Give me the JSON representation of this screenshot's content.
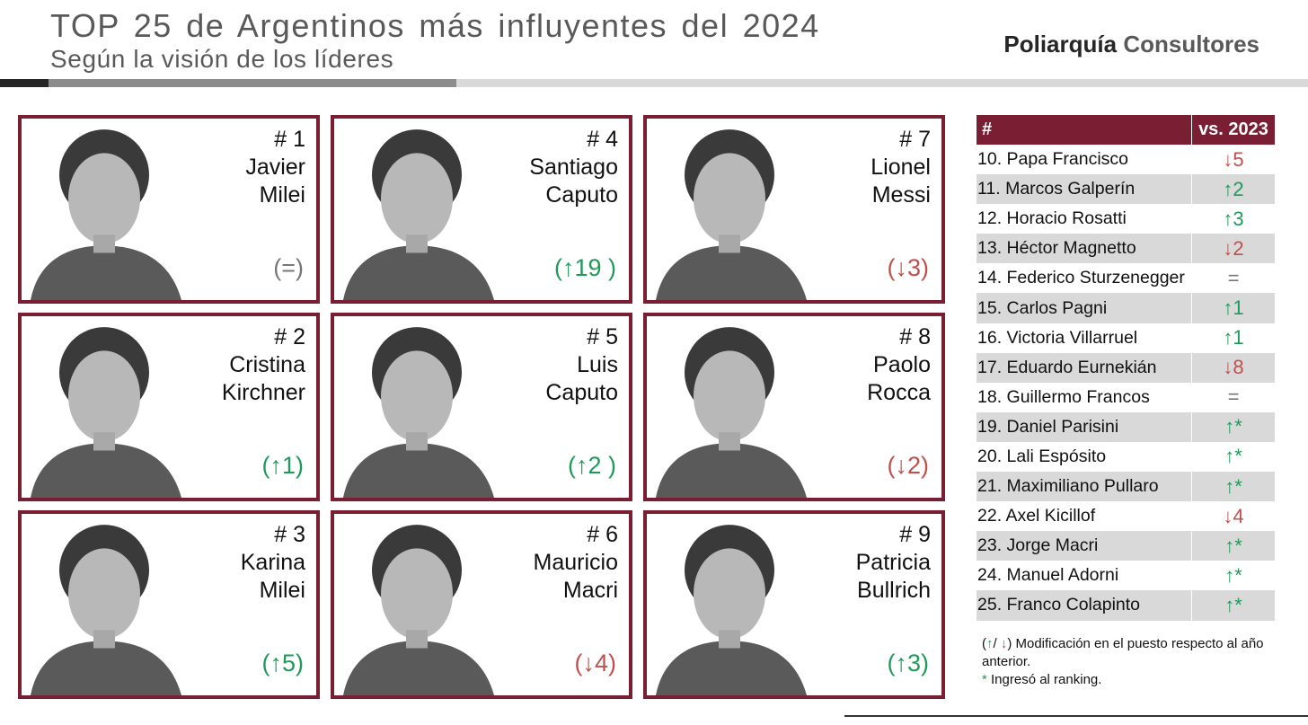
{
  "header": {
    "title": "TOP 25 de Argentinos más influyentes del 2024",
    "subtitle": "Según la visión de los líderes",
    "brand_part1": "Poliarquía",
    "brand_part2": "Consultores"
  },
  "colors": {
    "accent": "#7a1f33",
    "up": "#1f9a5a",
    "down": "#c0504d",
    "neutral": "#777777"
  },
  "cards": [
    {
      "rank": "# 1",
      "line1": "Javier",
      "line2": "Milei",
      "change": "(=)",
      "trend": "eq",
      "photo_icon": "portrait-icon"
    },
    {
      "rank": "# 4",
      "line1": "Santiago",
      "line2": "Caputo",
      "change": "(↑19 )",
      "trend": "up",
      "photo_icon": "portrait-icon"
    },
    {
      "rank": "# 7",
      "line1": "Lionel",
      "line2": "Messi",
      "change": "(↓3)",
      "trend": "down",
      "photo_icon": "portrait-icon"
    },
    {
      "rank": "# 2",
      "line1": "Cristina",
      "line2": "Kirchner",
      "change": "(↑1)",
      "trend": "up",
      "photo_icon": "portrait-icon"
    },
    {
      "rank": "# 5",
      "line1": "Luis",
      "line2": "Caputo",
      "change": "(↑2 )",
      "trend": "up",
      "photo_icon": "portrait-icon"
    },
    {
      "rank": "# 8",
      "line1": "Paolo",
      "line2": "Rocca",
      "change": "(↓2)",
      "trend": "down",
      "photo_icon": "portrait-icon"
    },
    {
      "rank": "# 3",
      "line1": "Karina",
      "line2": "Milei",
      "change": "(↑5)",
      "trend": "up",
      "photo_icon": "portrait-icon"
    },
    {
      "rank": "# 6",
      "line1": "Mauricio",
      "line2": "Macri",
      "change": "(↓4)",
      "trend": "down",
      "photo_icon": "portrait-icon"
    },
    {
      "rank": "# 9",
      "line1": "Patricia",
      "line2": "Bullrich",
      "change": "(↑3)",
      "trend": "up",
      "photo_icon": "portrait-icon"
    }
  ],
  "table": {
    "col1": "#",
    "col2": "vs. 2023",
    "rows": [
      {
        "name": "10. Papa Francisco",
        "change": "↓5",
        "trend": "down"
      },
      {
        "name": "11. Marcos Galperín",
        "change": "↑2",
        "trend": "up"
      },
      {
        "name": "12. Horacio Rosatti",
        "change": "↑3",
        "trend": "up"
      },
      {
        "name": "13. Héctor Magnetto",
        "change": "↓2",
        "trend": "down"
      },
      {
        "name": "14. Federico Sturzenegger",
        "change": "=",
        "trend": "eq"
      },
      {
        "name": "15. Carlos Pagni",
        "change": "↑1",
        "trend": "up"
      },
      {
        "name": "16. Victoria Villarruel",
        "change": "↑1",
        "trend": "up"
      },
      {
        "name": "17. Eduardo Eurnekián",
        "change": "↓8",
        "trend": "down"
      },
      {
        "name": "18. Guillermo Francos",
        "change": "=",
        "trend": "eq"
      },
      {
        "name": "19. Daniel Parisini",
        "change": "↑*",
        "trend": "up"
      },
      {
        "name": "20. Lali Espósito",
        "change": "↑*",
        "trend": "up"
      },
      {
        "name": "21. Maximiliano Pullaro",
        "change": "↑*",
        "trend": "up"
      },
      {
        "name": "22. Axel Kicillof",
        "change": "↓4",
        "trend": "down"
      },
      {
        "name": "23. Jorge Macri",
        "change": "↑*",
        "trend": "up"
      },
      {
        "name": "24. Manuel Adorni",
        "change": "↑*",
        "trend": "up"
      },
      {
        "name": "25. Franco Colapinto",
        "change": "↑*",
        "trend": "up"
      }
    ]
  },
  "notes": {
    "open": "(",
    "up_arrow": "↑",
    "slash": "/ ",
    "down_arrow": "↓",
    "line1_rest": ") Modificación en el puesto respecto al año anterior.",
    "star": "*",
    "line2_rest": " Ingresó al ranking."
  }
}
